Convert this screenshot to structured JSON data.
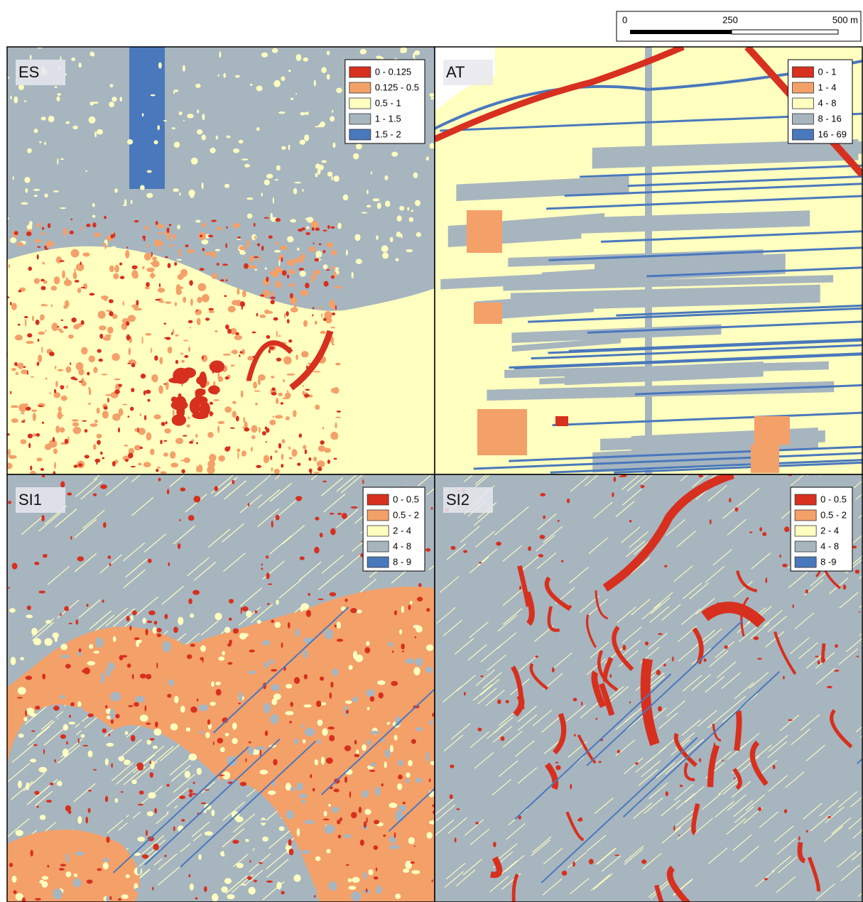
{
  "scale_bar": {
    "labels": [
      "0",
      "250",
      "500 m"
    ]
  },
  "panels": [
    {
      "label": "ES",
      "legend": [
        {
          "label": "0 - 0.125",
          "color": "#d7301f"
        },
        {
          "label": "0.125 - 0.5",
          "color": "#f4a069"
        },
        {
          "label": "0.5 - 1",
          "color": "#ffffbf"
        },
        {
          "label": "1 - 1.5",
          "color": "#a7b5bf"
        },
        {
          "label": "1.5 - 2",
          "color": "#4a78bd"
        }
      ]
    },
    {
      "label": "AT",
      "legend": [
        {
          "label": "0 - 1",
          "color": "#d7301f"
        },
        {
          "label": "1 - 4",
          "color": "#f4a069"
        },
        {
          "label": "4 - 8",
          "color": "#ffffbf"
        },
        {
          "label": "8 - 16",
          "color": "#a7b5bf"
        },
        {
          "label": "16 - 69",
          "color": "#4a78bd"
        }
      ]
    },
    {
      "label": "SI1",
      "legend": [
        {
          "label": "0 - 0.5",
          "color": "#d7301f"
        },
        {
          "label": "0.5 - 2",
          "color": "#f4a069"
        },
        {
          "label": "2 - 4",
          "color": "#ffffbf"
        },
        {
          "label": "4 - 8",
          "color": "#a7b5bf"
        },
        {
          "label": "8 - 9",
          "color": "#4a78bd"
        }
      ]
    },
    {
      "label": "SI2",
      "legend": [
        {
          "label": "0 - 0.5",
          "color": "#d7301f"
        },
        {
          "label": "0.5 - 2",
          "color": "#f4a069"
        },
        {
          "label": "2 - 4",
          "color": "#ffffbf"
        },
        {
          "label": "4 - 8",
          "color": "#a7b5bf"
        },
        {
          "label": "8 -9",
          "color": "#4a78bd"
        }
      ]
    }
  ]
}
